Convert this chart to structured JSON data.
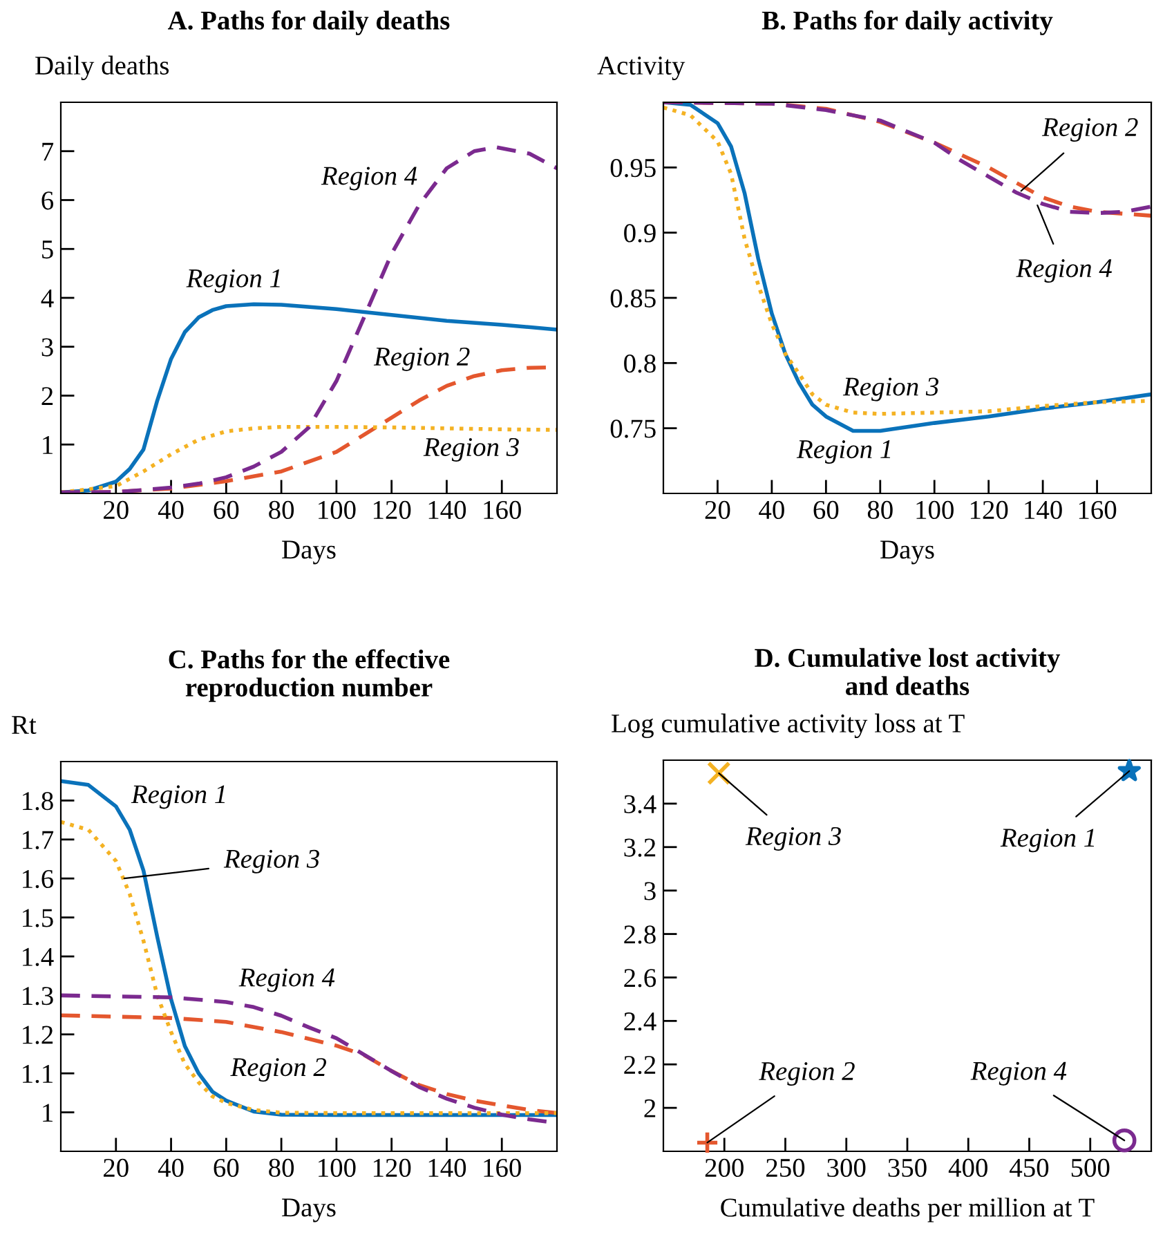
{
  "chart_data": [
    {
      "type": "line",
      "title": "A. Paths for daily deaths",
      "ylabel": "Daily deaths",
      "xlabel": "Days",
      "xlim": [
        0,
        180
      ],
      "ylim": [
        0,
        8
      ],
      "xticks": [
        20,
        40,
        60,
        80,
        100,
        120,
        140,
        160
      ],
      "yticks": [
        1,
        2,
        3,
        4,
        5,
        6,
        7
      ],
      "grid": false,
      "legend": false,
      "series": [
        {
          "color": "#0a72ba",
          "line_style": "solid",
          "x": [
            0,
            10,
            20,
            25,
            30,
            35,
            40,
            45,
            50,
            55,
            60,
            70,
            80,
            100,
            120,
            140,
            160,
            180
          ],
          "values": [
            0.02,
            0.06,
            0.24,
            0.5,
            0.9,
            1.9,
            2.75,
            3.3,
            3.6,
            3.75,
            3.83,
            3.87,
            3.86,
            3.77,
            3.65,
            3.53,
            3.45,
            3.35
          ]
        },
        {
          "color": "#e4572e",
          "line_style": "dashed",
          "x": [
            0,
            20,
            40,
            60,
            80,
            100,
            110,
            120,
            130,
            140,
            150,
            160,
            170,
            180
          ],
          "values": [
            0.02,
            0.03,
            0.1,
            0.25,
            0.45,
            0.85,
            1.2,
            1.55,
            1.9,
            2.2,
            2.4,
            2.52,
            2.57,
            2.58
          ]
        },
        {
          "color": "#f4b223",
          "line_style": "dotted",
          "x": [
            0,
            20,
            30,
            40,
            50,
            60,
            70,
            80,
            100,
            120,
            140,
            160,
            180
          ],
          "values": [
            0.02,
            0.15,
            0.45,
            0.8,
            1.1,
            1.27,
            1.33,
            1.36,
            1.36,
            1.35,
            1.33,
            1.31,
            1.3
          ]
        },
        {
          "color": "#7b2a8f",
          "line_style": "dashed",
          "x": [
            0,
            20,
            30,
            40,
            50,
            60,
            70,
            80,
            90,
            100,
            110,
            120,
            130,
            140,
            150,
            158,
            170,
            180
          ],
          "values": [
            0.02,
            0.03,
            0.07,
            0.12,
            0.2,
            0.33,
            0.55,
            0.85,
            1.35,
            2.3,
            3.6,
            4.9,
            5.9,
            6.65,
            7.0,
            7.08,
            6.95,
            6.65
          ]
        }
      ],
      "annotations": [
        "Region 4",
        "Region 1",
        "Region 2",
        "Region 3"
      ]
    },
    {
      "type": "line",
      "title": "B. Paths for daily activity",
      "ylabel": "Activity",
      "xlabel": "Days",
      "xlim": [
        0,
        180
      ],
      "ylim": [
        0.7,
        1.0
      ],
      "xticks": [
        20,
        40,
        60,
        80,
        100,
        120,
        140,
        160
      ],
      "yticks": [
        0.75,
        0.8,
        0.85,
        0.9,
        0.95
      ],
      "grid": false,
      "legend": false,
      "series": [
        {
          "color": "#0a72ba",
          "line_style": "solid",
          "x": [
            0,
            10,
            20,
            25,
            30,
            35,
            40,
            45,
            50,
            55,
            60,
            70,
            80,
            100,
            120,
            140,
            160,
            180
          ],
          "values": [
            1.0,
            0.998,
            0.984,
            0.966,
            0.93,
            0.88,
            0.838,
            0.807,
            0.785,
            0.768,
            0.759,
            0.748,
            0.748,
            0.754,
            0.759,
            0.765,
            0.77,
            0.776
          ]
        },
        {
          "color": "#e4572e",
          "line_style": "dashed",
          "x": [
            0,
            40,
            60,
            80,
            100,
            120,
            140,
            150,
            160,
            180
          ],
          "values": [
            1.0,
            0.999,
            0.995,
            0.985,
            0.969,
            0.95,
            0.927,
            0.92,
            0.916,
            0.913
          ]
        },
        {
          "color": "#f4b223",
          "line_style": "dotted",
          "x": [
            0,
            10,
            20,
            25,
            30,
            35,
            40,
            45,
            50,
            55,
            60,
            70,
            80,
            100,
            120,
            140,
            160,
            180
          ],
          "values": [
            0.996,
            0.99,
            0.97,
            0.945,
            0.895,
            0.86,
            0.83,
            0.807,
            0.792,
            0.776,
            0.768,
            0.762,
            0.761,
            0.762,
            0.763,
            0.767,
            0.77,
            0.771
          ]
        },
        {
          "color": "#7b2a8f",
          "line_style": "dashed",
          "x": [
            0,
            40,
            60,
            80,
            100,
            110,
            120,
            130,
            140,
            150,
            160,
            170,
            180
          ],
          "values": [
            1.0,
            0.999,
            0.994,
            0.986,
            0.969,
            0.955,
            0.943,
            0.931,
            0.922,
            0.916,
            0.915,
            0.916,
            0.92
          ]
        }
      ],
      "annotations": [
        {
          "text": "Region 2",
          "x": 132,
          "y": 0.932
        },
        {
          "text": "Region 4",
          "x": 138,
          "y": 0.921
        },
        "Region 3",
        "Region 1"
      ]
    },
    {
      "type": "line",
      "title": "C. Paths for the effective\nreproduction number",
      "ylabel": "Rt",
      "xlabel": "Days",
      "xlim": [
        0,
        180
      ],
      "ylim": [
        0.9,
        1.9
      ],
      "xticks": [
        20,
        40,
        60,
        80,
        100,
        120,
        140,
        160
      ],
      "yticks": [
        1,
        1.1,
        1.2,
        1.3,
        1.4,
        1.5,
        1.6,
        1.7,
        1.8
      ],
      "grid": false,
      "legend": false,
      "series": [
        {
          "color": "#0a72ba",
          "line_style": "solid",
          "x": [
            0,
            10,
            20,
            25,
            30,
            35,
            40,
            45,
            50,
            55,
            60,
            70,
            80,
            100,
            130,
            160,
            180
          ],
          "values": [
            1.85,
            1.84,
            1.785,
            1.725,
            1.62,
            1.45,
            1.29,
            1.17,
            1.1,
            1.053,
            1.03,
            1.002,
            0.994,
            0.993,
            0.993,
            0.993,
            0.993
          ]
        },
        {
          "color": "#e4572e",
          "line_style": "dashed",
          "x": [
            0,
            40,
            60,
            80,
            100,
            110,
            120,
            130,
            140,
            150,
            160,
            170,
            180
          ],
          "values": [
            1.249,
            1.242,
            1.232,
            1.206,
            1.171,
            1.147,
            1.106,
            1.07,
            1.047,
            1.03,
            1.018,
            1.006,
            0.998
          ]
        },
        {
          "color": "#f4b223",
          "line_style": "dotted",
          "x": [
            0,
            10,
            20,
            25,
            30,
            35,
            40,
            45,
            50,
            55,
            60,
            70,
            80,
            100,
            130,
            160,
            180
          ],
          "values": [
            1.745,
            1.725,
            1.645,
            1.56,
            1.44,
            1.3,
            1.206,
            1.124,
            1.077,
            1.041,
            1.024,
            1.006,
            0.999,
            0.998,
            0.998,
            0.998,
            0.998
          ]
        },
        {
          "color": "#7b2a8f",
          "line_style": "dashed",
          "x": [
            0,
            40,
            60,
            70,
            80,
            90,
            100,
            110,
            120,
            130,
            140,
            150,
            160,
            170,
            180
          ],
          "values": [
            1.3,
            1.295,
            1.283,
            1.27,
            1.248,
            1.218,
            1.19,
            1.148,
            1.106,
            1.065,
            1.035,
            1.012,
            0.994,
            0.982,
            0.973
          ]
        }
      ],
      "annotations": [
        "Region 1",
        {
          "text": "Region 3",
          "x": 23,
          "y": 1.6
        },
        "Region 4",
        "Region 2"
      ]
    },
    {
      "type": "scatter",
      "title": "D. Cumulative lost activity\nand deaths",
      "ylabel": "Log cumulative activity loss at T",
      "xlabel": "Cumulative deaths per million at T",
      "xlim": [
        150,
        550
      ],
      "ylim": [
        1.8,
        3.6
      ],
      "xticks": [
        200,
        250,
        300,
        350,
        400,
        450,
        500
      ],
      "yticks": [
        2,
        2.2,
        2.4,
        2.6,
        2.8,
        3,
        3.2,
        3.4
      ],
      "grid": false,
      "legend": false,
      "series": [
        {
          "color": "#0a72ba",
          "marker": "star",
          "x": [
            532
          ],
          "values": [
            3.55
          ]
        },
        {
          "color": "#e4572e",
          "marker": "plus",
          "x": [
            186
          ],
          "values": [
            1.84
          ]
        },
        {
          "color": "#f4b223",
          "marker": "cross",
          "x": [
            195.5
          ],
          "values": [
            3.54
          ]
        },
        {
          "color": "#7b2a8f",
          "marker": "circle",
          "x": [
            528
          ],
          "values": [
            1.85
          ]
        }
      ],
      "annotations": [
        {
          "text": "Region 3",
          "x": 195.5,
          "y": 3.54
        },
        {
          "text": "Region 1",
          "x": 532,
          "y": 3.55
        },
        {
          "text": "Region 2",
          "x": 186,
          "y": 1.84
        },
        {
          "text": "Region 4",
          "x": 528,
          "y": 1.85
        }
      ]
    }
  ]
}
